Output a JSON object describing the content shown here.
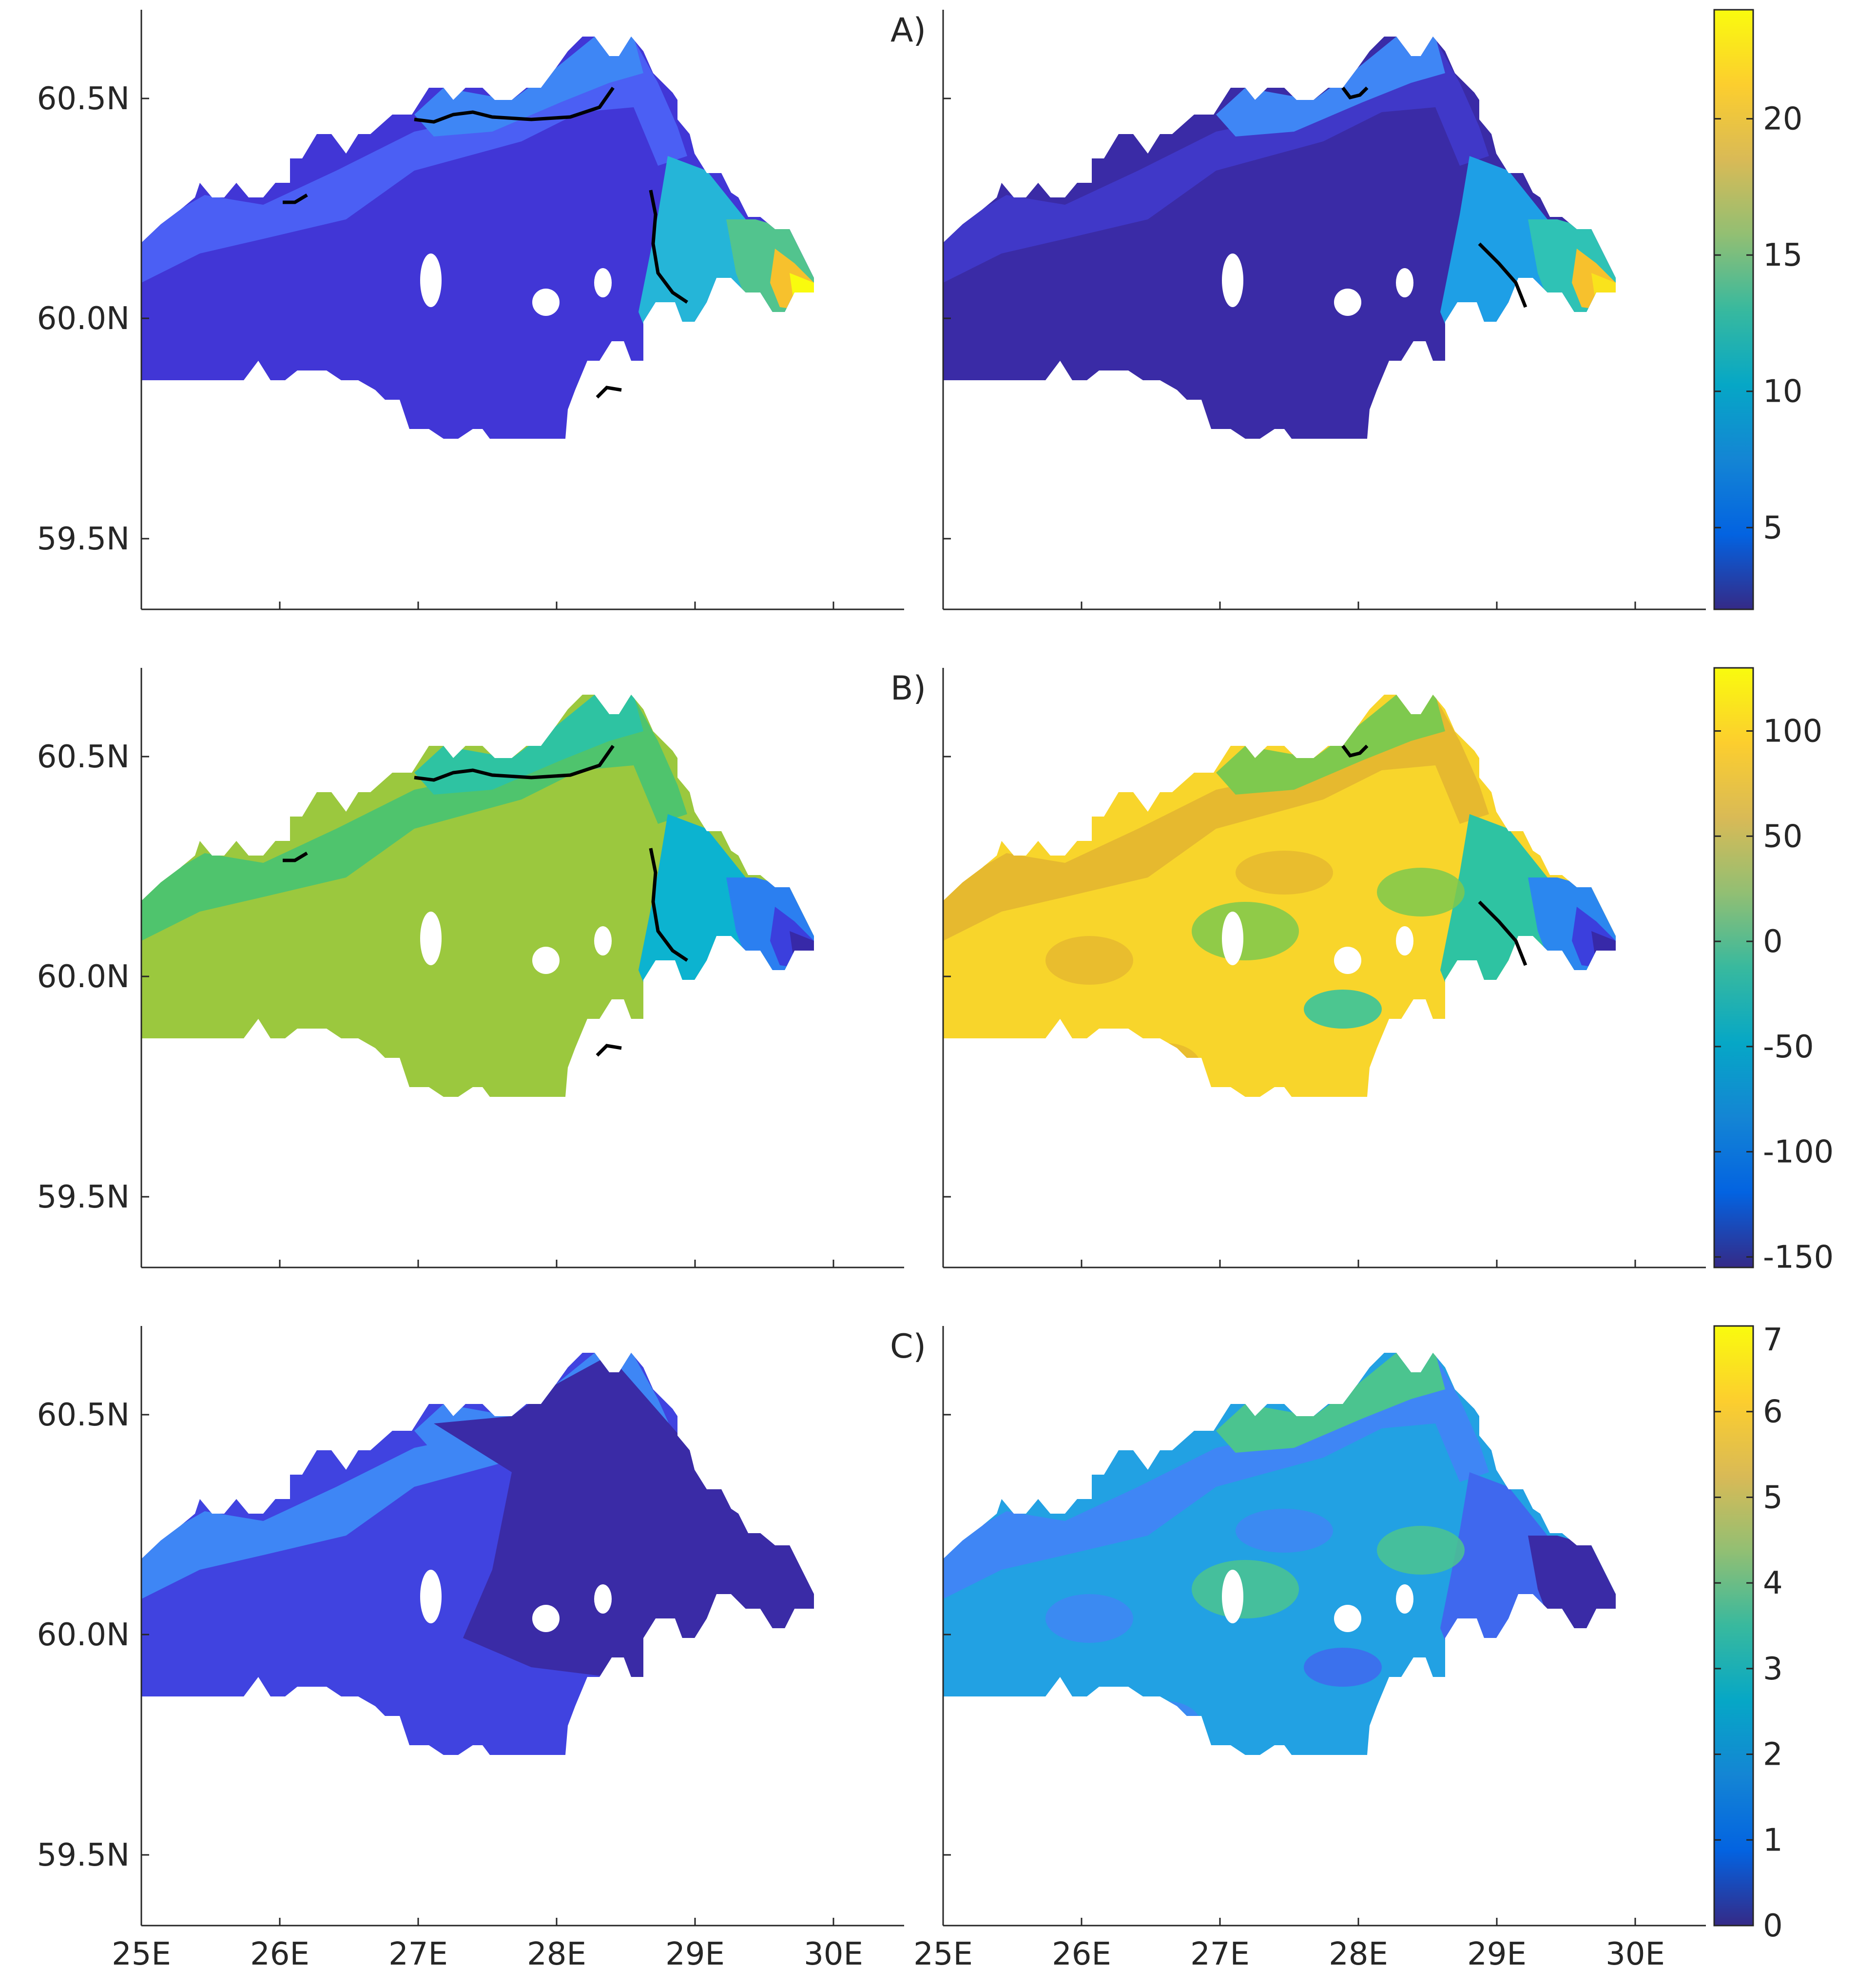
{
  "figure": {
    "lon_ticks": [
      "25E",
      "26E",
      "27E",
      "28E",
      "29E",
      "30E"
    ],
    "lat_ticks": [
      "59.5N",
      "60.0N",
      "60.5N"
    ]
  },
  "colors": {
    "axis": "#262626",
    "contour_line": "#000000",
    "parula_stops": [
      "#352a87",
      "#0363e1",
      "#1485d4",
      "#06a7c6",
      "#38b99e",
      "#92bf73",
      "#d9ba56",
      "#fcce2e",
      "#f9fb0e"
    ]
  },
  "rows": [
    {
      "label": "A)",
      "colorbar": {
        "min": 2,
        "max": 24,
        "ticks": [
          5,
          10,
          15,
          20
        ],
        "tick_labels": [
          "5",
          "10",
          "15",
          "20"
        ]
      },
      "left_map_colors": {
        "main": "#4136d6",
        "edge": "#4b5ff4",
        "coast": "#3e86f5",
        "east1": "#25b5d8",
        "east2": "#52c48e",
        "east3": "#f7c12d",
        "east4": "#f9fb0e"
      },
      "right_map_colors": {
        "main": "#3a2ba6",
        "edge": "#4038c8",
        "coast": "#3f86f5",
        "east1": "#1e9fe6",
        "east2": "#2fc2b5",
        "east3": "#f7c12d",
        "east4": "#f9e31c"
      }
    },
    {
      "label": "B)",
      "colorbar": {
        "min": -155,
        "max": 130,
        "ticks": [
          -150,
          -100,
          -50,
          0,
          50,
          100
        ],
        "tick_labels": [
          "-150",
          "-100",
          "-50",
          "0",
          "50",
          "100"
        ]
      },
      "left_map_colors": {
        "main": "#9bc83e",
        "edge": "#4fc46d",
        "coast": "#2ec3a2",
        "east1": "#0cb3d0",
        "east2": "#2b7ff0",
        "east3": "#3b3fdd",
        "east4": "#3729a8"
      },
      "right_map_colors": {
        "main": "#f8d52b",
        "edge": "#e6b92f",
        "coast": "#7ec94e",
        "east1": "#2ec3a2",
        "east2": "#2b87ef",
        "east3": "#3b3fdd",
        "east4": "#3729a8"
      }
    },
    {
      "label": "C)",
      "colorbar": {
        "min": 0,
        "max": 7,
        "ticks": [
          0,
          1,
          2,
          3,
          4,
          5,
          6,
          7
        ],
        "tick_labels": [
          "0",
          "1",
          "2",
          "3",
          "4",
          "5",
          "6",
          "7"
        ]
      },
      "left_map_colors": {
        "main": "#4043e0",
        "edge": "#3e86f5",
        "coast": "#3e86f5",
        "east1": "#3a2ba6",
        "east2": "#3a2ba6",
        "east3": "#3a2ba6",
        "east4": "#3a2ba6"
      },
      "right_map_colors": {
        "main": "#22a1e3",
        "edge": "#3f86f5",
        "coast": "#4bc48f",
        "east1": "#3f68ee",
        "east2": "#3a2ba6",
        "east3": "#3a2ba6",
        "east4": "#3a2ba6"
      }
    }
  ]
}
